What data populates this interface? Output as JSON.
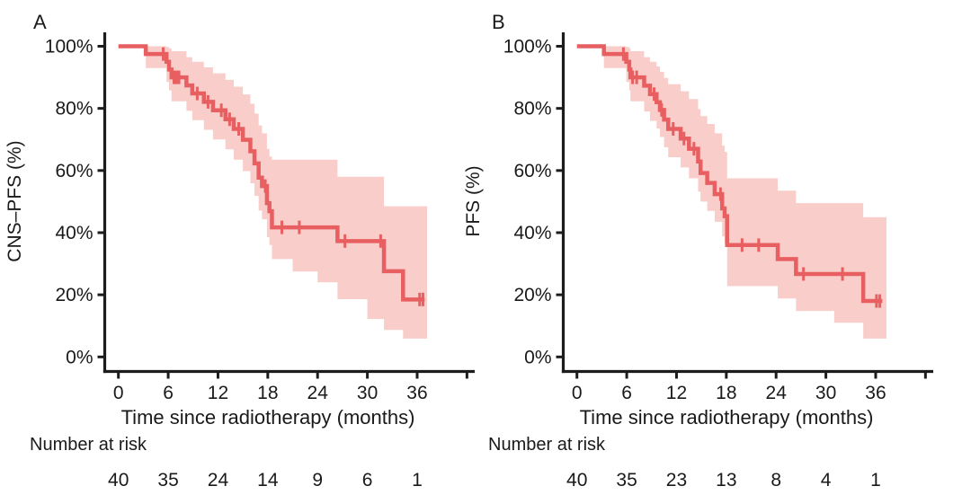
{
  "figure": {
    "background": "#ffffff",
    "colors": {
      "curve": "#E75F60",
      "band": "#F9CDCA",
      "axis": "#1C1C1C",
      "text": "#1A1A1A"
    }
  },
  "chart_data": [
    {
      "type": "line",
      "subtype": "kaplan-meier",
      "panel_label": "A",
      "ylabel": "CNS–PFS (%)",
      "xlabel": "Time since radiotherapy (months)",
      "xlim": [
        0,
        42.8
      ],
      "ylim": [
        0,
        100
      ],
      "xticks": [
        0,
        6,
        12,
        18,
        24,
        30,
        36
      ],
      "extra_unlabeled_xtick": 42,
      "ytick_values": [
        100,
        80,
        60,
        40,
        20,
        0
      ],
      "ytick_labels": [
        "100%",
        "80%",
        "60%",
        "40%",
        "20%",
        "0%"
      ],
      "grid": false,
      "legend": null,
      "survival_steps": [
        [
          0,
          100
        ],
        [
          3.3,
          97.5
        ],
        [
          5.8,
          95
        ],
        [
          6.1,
          92.5
        ],
        [
          6.4,
          90
        ],
        [
          8.2,
          87.4
        ],
        [
          8.9,
          84.8
        ],
        [
          10.3,
          82.1
        ],
        [
          11.4,
          79.4
        ],
        [
          12.9,
          76.5
        ],
        [
          13.9,
          73.4
        ],
        [
          15.0,
          69.9
        ],
        [
          15.9,
          66.2
        ],
        [
          16.4,
          62.3
        ],
        [
          16.9,
          57.7
        ],
        [
          17.3,
          55.0
        ],
        [
          17.9,
          49.5
        ],
        [
          18.2,
          46.9
        ],
        [
          18.5,
          41.7
        ],
        [
          26.4,
          37.3
        ],
        [
          32.0,
          27.6
        ],
        [
          34.3,
          18.5
        ]
      ],
      "curve_end_time": 36.9,
      "censor_marks": [
        [
          5.4,
          97.5
        ],
        [
          6.7,
          90
        ],
        [
          7.0,
          90
        ],
        [
          7.3,
          90
        ],
        [
          9.5,
          84.8
        ],
        [
          10.8,
          82.1
        ],
        [
          12.4,
          79.4
        ],
        [
          13.4,
          76.5
        ],
        [
          14.5,
          73.4
        ],
        [
          17.7,
          55.0
        ],
        [
          19.7,
          41.7
        ],
        [
          21.8,
          41.7
        ],
        [
          27.3,
          37.3
        ],
        [
          31.6,
          37.3
        ],
        [
          36.3,
          18.5
        ],
        [
          36.7,
          18.5
        ]
      ],
      "confidence_band": [
        [
          3.3,
          100,
          93
        ],
        [
          5.8,
          99.8,
          88.5
        ],
        [
          6.1,
          99.3,
          85.8
        ],
        [
          6.4,
          98.4,
          82.3
        ],
        [
          8.2,
          96.5,
          79.2
        ],
        [
          8.9,
          95.0,
          76.2
        ],
        [
          10.3,
          93.2,
          73.1
        ],
        [
          11.4,
          91.3,
          70.0
        ],
        [
          12.9,
          89.2,
          66.8
        ],
        [
          13.9,
          87.0,
          63.5
        ],
        [
          15.0,
          84.5,
          59.8
        ],
        [
          15.9,
          81.5,
          55.9
        ],
        [
          16.4,
          78.3,
          51.8
        ],
        [
          16.9,
          74.5,
          47.1
        ],
        [
          17.3,
          72.0,
          44.3
        ],
        [
          17.9,
          67.0,
          38.5
        ],
        [
          18.2,
          64.5,
          36.0
        ],
        [
          18.5,
          63.5,
          31.5
        ],
        [
          21.0,
          63.5,
          27.5
        ],
        [
          24.0,
          63.5,
          24.0
        ],
        [
          26.4,
          58.0,
          18.6
        ],
        [
          30.0,
          58.0,
          12.2
        ],
        [
          32.0,
          48.5,
          8.7
        ],
        [
          34.3,
          48.5,
          5.9
        ]
      ],
      "band_end_time": 37.2,
      "number_at_risk": {
        "label": "Number at risk",
        "times": [
          0,
          6,
          12,
          18,
          24,
          30,
          36
        ],
        "counts": [
          40,
          35,
          24,
          14,
          9,
          6,
          1
        ]
      }
    },
    {
      "type": "line",
      "subtype": "kaplan-meier",
      "panel_label": "B",
      "ylabel": "PFS (%)",
      "xlabel": "Time since radiotherapy (months)",
      "xlim": [
        0,
        42.8
      ],
      "ylim": [
        0,
        100
      ],
      "xticks": [
        0,
        6,
        12,
        18,
        24,
        30,
        36
      ],
      "extra_unlabeled_xtick": 42,
      "ytick_values": [
        100,
        80,
        60,
        40,
        20,
        0
      ],
      "ytick_labels": [
        "100%",
        "80%",
        "60%",
        "40%",
        "20%",
        "0%"
      ],
      "grid": false,
      "legend": null,
      "survival_steps": [
        [
          0,
          100
        ],
        [
          3.25,
          97.5
        ],
        [
          5.95,
          95
        ],
        [
          6.3,
          92.5
        ],
        [
          6.45,
          90
        ],
        [
          8.1,
          87.3
        ],
        [
          8.8,
          84.6
        ],
        [
          9.6,
          82.0
        ],
        [
          10.0,
          79.5
        ],
        [
          10.5,
          76.4
        ],
        [
          11.0,
          73.4
        ],
        [
          12.5,
          70.3
        ],
        [
          13.5,
          67.0
        ],
        [
          14.6,
          62.9
        ],
        [
          14.9,
          59.2
        ],
        [
          15.7,
          56.0
        ],
        [
          16.6,
          52.4
        ],
        [
          17.5,
          47.8
        ],
        [
          17.8,
          45.3
        ],
        [
          18.1,
          36.0
        ],
        [
          24.2,
          31.5
        ],
        [
          26.4,
          26.7
        ],
        [
          34.5,
          18.0
        ]
      ],
      "curve_end_time": 36.8,
      "censor_marks": [
        [
          5.6,
          97.5
        ],
        [
          6.7,
          90
        ],
        [
          7.2,
          90
        ],
        [
          9.3,
          84.6
        ],
        [
          10.2,
          79.5
        ],
        [
          11.6,
          73.4
        ],
        [
          12.9,
          70.3
        ],
        [
          14.1,
          67.0
        ],
        [
          17.3,
          52.4
        ],
        [
          19.9,
          36.0
        ],
        [
          21.9,
          36.0
        ],
        [
          27.3,
          26.7
        ],
        [
          32.0,
          26.7
        ],
        [
          36.1,
          18.0
        ],
        [
          36.5,
          18.0
        ]
      ],
      "confidence_band": [
        [
          3.25,
          100,
          93
        ],
        [
          5.95,
          99.8,
          88.5
        ],
        [
          6.3,
          99.3,
          85.8
        ],
        [
          6.45,
          98.4,
          82.3
        ],
        [
          8.1,
          96.5,
          79.0
        ],
        [
          8.8,
          95.0,
          76.0
        ],
        [
          9.6,
          93.5,
          73.5
        ],
        [
          10.0,
          91.8,
          70.8
        ],
        [
          10.5,
          89.8,
          67.5
        ],
        [
          11.0,
          87.8,
          64.3
        ],
        [
          12.5,
          85.5,
          61.0
        ],
        [
          13.5,
          83.0,
          57.5
        ],
        [
          14.6,
          79.8,
          53.2
        ],
        [
          14.9,
          77.5,
          50.0
        ],
        [
          15.7,
          75.0,
          47.0
        ],
        [
          16.6,
          72.0,
          43.5
        ],
        [
          17.5,
          68.0,
          38.8
        ],
        [
          17.8,
          66.0,
          36.5
        ],
        [
          18.1,
          57.5,
          22.8
        ],
        [
          24.2,
          53.5,
          18.8
        ],
        [
          26.4,
          49.5,
          14.8
        ],
        [
          31.0,
          49.5,
          11.0
        ],
        [
          34.5,
          45.0,
          5.9
        ]
      ],
      "band_end_time": 37.3,
      "number_at_risk": {
        "label": "Number at risk",
        "times": [
          0,
          6,
          12,
          18,
          24,
          30,
          36
        ],
        "counts": [
          40,
          35,
          23,
          13,
          8,
          4,
          1
        ]
      }
    }
  ]
}
